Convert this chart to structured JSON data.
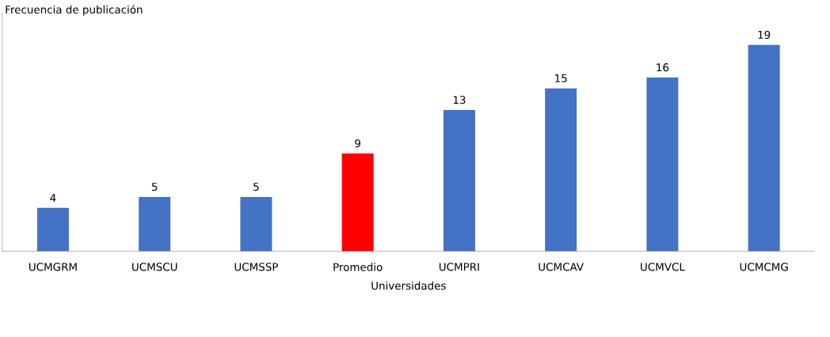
{
  "chart_data": {
    "type": "bar",
    "ylabel": "Frecuencia de publicación",
    "xlabel": "Universidades",
    "categories": [
      "UCMGRM",
      "UCMSCU",
      "UCMSSP",
      "Promedio",
      "UCMPRI",
      "UCMCAV",
      "UCMVCL",
      "UCMCMG"
    ],
    "values": [
      4,
      5,
      5,
      9,
      13,
      15,
      16,
      19
    ],
    "colors": [
      "#4472c4",
      "#4472c4",
      "#4472c4",
      "#ff0000",
      "#4472c4",
      "#4472c4",
      "#4472c4",
      "#4472c4"
    ],
    "ylim": [
      0,
      22
    ],
    "data_labels": true
  }
}
